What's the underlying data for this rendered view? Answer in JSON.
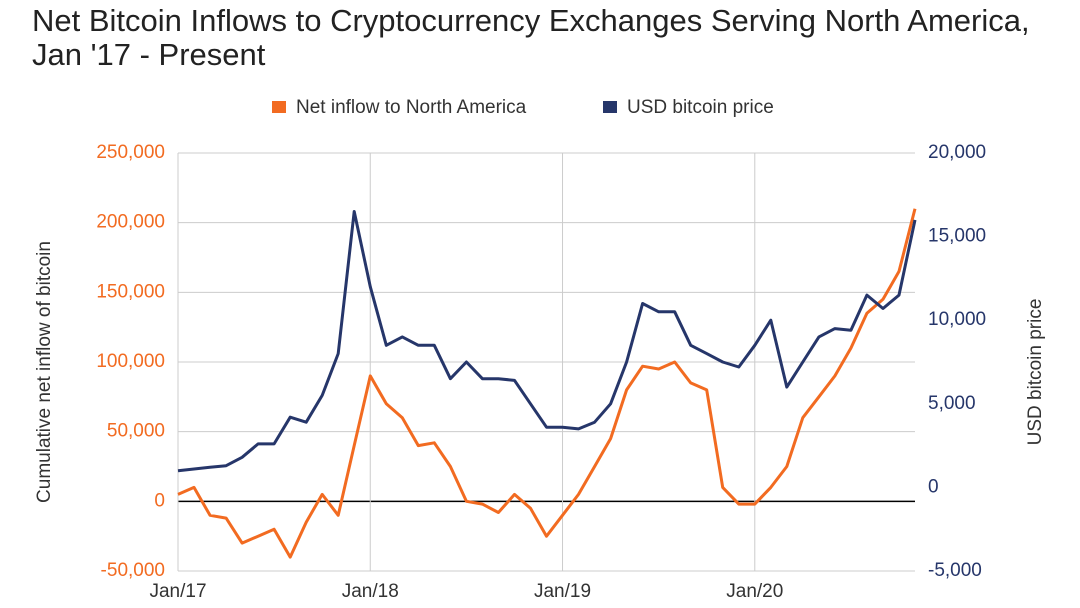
{
  "chart_data": {
    "type": "line",
    "title": "Net Bitcoin Inflows to Cryptocurrency Exchanges Serving North America, Jan '17 - Present",
    "ylabel": "Cumulative net inflow of bitcoin",
    "y2label": "USD bitcoin price",
    "categories": [
      "Jan/17",
      null,
      null,
      null,
      null,
      null,
      null,
      null,
      null,
      null,
      null,
      null,
      "Jan/18",
      null,
      null,
      null,
      null,
      null,
      null,
      null,
      null,
      null,
      null,
      null,
      "Jan/19",
      null,
      null,
      null,
      null,
      null,
      null,
      null,
      null,
      null,
      null,
      null,
      "Jan/20",
      null,
      null,
      null,
      null,
      null,
      null,
      null,
      null,
      null,
      null
    ],
    "series": [
      {
        "name": "Net inflow to North America",
        "color": "#f26b21",
        "axis": "y",
        "values": [
          5000,
          10000,
          -10000,
          -12000,
          -30000,
          -25000,
          -20000,
          -40000,
          -15000,
          5000,
          -10000,
          40000,
          90000,
          70000,
          60000,
          40000,
          42000,
          25000,
          0,
          -2000,
          -8000,
          5000,
          -5000,
          -25000,
          -10000,
          5000,
          25000,
          45000,
          80000,
          97000,
          95000,
          100000,
          85000,
          80000,
          10000,
          -2000,
          -2000,
          10000,
          25000,
          60000,
          75000,
          90000,
          110000,
          135000,
          145000,
          165000,
          210000
        ]
      },
      {
        "name": "USD bitcoin price",
        "color": "#26366a",
        "axis": "y2",
        "values": [
          1000,
          1100,
          1200,
          1300,
          1800,
          2600,
          2600,
          4200,
          3900,
          5500,
          8000,
          16500,
          12000,
          8500,
          9000,
          8500,
          8500,
          6500,
          7500,
          6500,
          6500,
          6400,
          5000,
          3600,
          3600,
          3500,
          3900,
          5000,
          7500,
          11000,
          10500,
          10500,
          8500,
          8000,
          7500,
          7200,
          8500,
          10000,
          6000,
          7500,
          9000,
          9500,
          9400,
          11500,
          10700,
          11500,
          16000
        ]
      }
    ],
    "ylim": [
      -50000,
      250000
    ],
    "yticks": [
      {
        "value": -50000,
        "label": "-50,000"
      },
      0,
      {
        "value": 50000,
        "label": "50,000"
      },
      {
        "value": 100000,
        "label": "100,000"
      },
      {
        "value": 150000,
        "label": "150,000"
      },
      {
        "value": 200000,
        "label": "200,000"
      },
      {
        "value": 250000,
        "label": "250,000"
      }
    ],
    "y2lim": [
      -5000,
      20000
    ],
    "y2ticks": [
      {
        "value": -5000,
        "label": "-5,000"
      },
      0,
      {
        "value": 5000,
        "label": "5,000"
      },
      {
        "value": 10000,
        "label": "10,000"
      },
      {
        "value": 15000,
        "label": "15,000"
      },
      {
        "value": 20000,
        "label": "20,000"
      }
    ],
    "grid": true
  }
}
